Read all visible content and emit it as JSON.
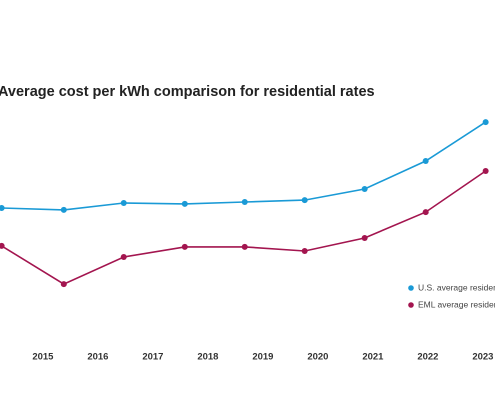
{
  "chart_data": {
    "type": "line",
    "title": "Average cost per kWh comparison for residential rates",
    "xlim": [
      2014.22,
      2023.22
    ],
    "xticks": [
      2015,
      2016,
      2017,
      2018,
      2019,
      2020,
      2021,
      2022,
      2023
    ],
    "ylim": [
      10,
      20
    ],
    "x": [
      2014.25,
      2015.38,
      2016.47,
      2017.58,
      2018.67,
      2019.76,
      2020.85,
      2021.96,
      2023.05
    ],
    "series": [
      {
        "name": "U.S. average resident",
        "color": "#1a9ad6",
        "values": [
          15.5,
          15.42,
          15.71,
          15.67,
          15.75,
          15.83,
          16.29,
          17.46,
          19.08
        ]
      },
      {
        "name": "EML average resident",
        "color": "#a3154f",
        "values": [
          13.92,
          12.33,
          13.46,
          13.88,
          13.88,
          13.71,
          14.25,
          15.33,
          17.04
        ]
      }
    ]
  }
}
